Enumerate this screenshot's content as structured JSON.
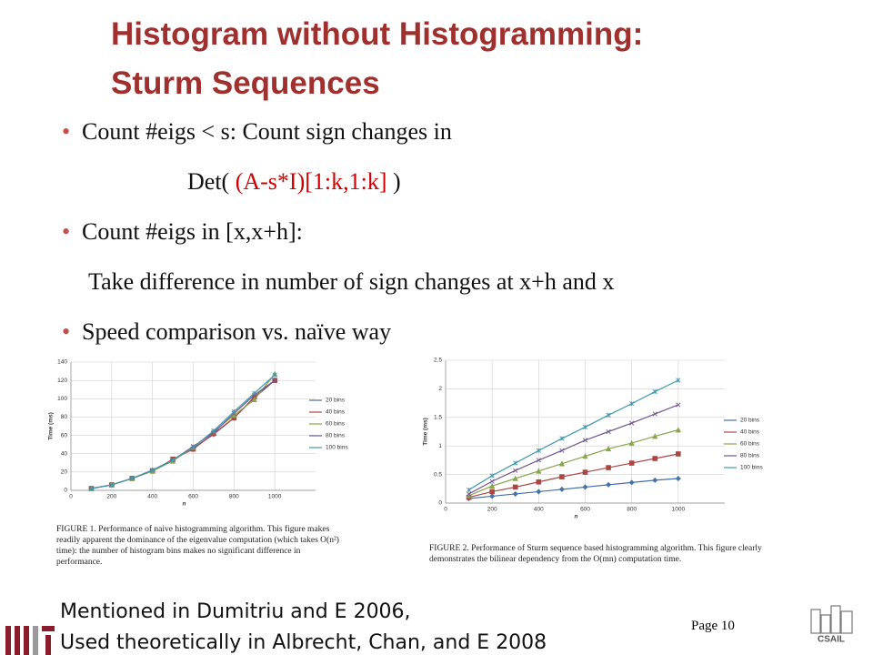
{
  "title": [
    "Histogram without Histogramming:",
    "Sturm Sequences"
  ],
  "bullets": [
    {
      "text": "Count #eigs < s: Count sign changes in"
    },
    {
      "pre": "Det( ",
      "red": "(A-s*I)[1:k,1:k]",
      "post": " )"
    },
    {
      "text": "Count #eigs in [x,x+h]:"
    },
    {
      "text": "Take difference in number of sign changes at x+h and x"
    },
    {
      "text": "Speed comparison vs. naïve way"
    }
  ],
  "footer": [
    "Mentioned in Dumitriu and E 2006,",
    "Used theoretically in Albrecht, Chan, and E 2008"
  ],
  "page": "Page 10",
  "logo_text": "CSAIL",
  "chart_data": [
    {
      "type": "line",
      "ylabel": "Time (ms)",
      "xlabel": "n",
      "x": [
        100,
        200,
        300,
        400,
        500,
        600,
        700,
        800,
        900,
        1000
      ],
      "xlim": [
        0,
        1200
      ],
      "xticks": [
        0,
        200,
        400,
        600,
        800,
        1000
      ],
      "ylim": [
        0,
        140
      ],
      "yticks": [
        0,
        20,
        40,
        60,
        80,
        100,
        120,
        140
      ],
      "grid": true,
      "legend": "right",
      "series": [
        {
          "name": "20 bins",
          "color": "#4572a7",
          "values": [
            2,
            6,
            13,
            22,
            33,
            46,
            61,
            79,
            101,
            120
          ]
        },
        {
          "name": "40 bins",
          "color": "#aa4643",
          "values": [
            2,
            6,
            13,
            21,
            34,
            45,
            62,
            79,
            102,
            120
          ]
        },
        {
          "name": "60 bins",
          "color": "#89a54e",
          "values": [
            2,
            6,
            13,
            21,
            32,
            47,
            64,
            82,
            99,
            127
          ]
        },
        {
          "name": "80 bins",
          "color": "#71588f",
          "values": [
            2,
            6,
            13,
            22,
            33,
            48,
            63,
            84,
            104,
            120
          ]
        },
        {
          "name": "100 bins",
          "color": "#4198af",
          "values": [
            2,
            6,
            13,
            22,
            33,
            47,
            65,
            86,
            106,
            126
          ]
        }
      ],
      "caption": "FIGURE 1. Performance of naive histogramming algorithm. This figure makes readily apparent the dominance of the eigenvalue computation (which takes O(n²) time): the number of histogram bins makes no significant difference in performance."
    },
    {
      "type": "line",
      "ylabel": "Time (ms)",
      "xlabel": "n",
      "x": [
        100,
        200,
        300,
        400,
        500,
        600,
        700,
        800,
        900,
        1000
      ],
      "xlim": [
        0,
        1200
      ],
      "xticks": [
        0,
        200,
        400,
        600,
        800,
        1000
      ],
      "ylim": [
        0,
        2.5
      ],
      "yticks": [
        0,
        0.5,
        1,
        1.5,
        2,
        2.5
      ],
      "grid": true,
      "legend": "right",
      "series": [
        {
          "name": "20 bins",
          "color": "#4572a7",
          "values": [
            0.08,
            0.12,
            0.16,
            0.2,
            0.24,
            0.28,
            0.32,
            0.36,
            0.4,
            0.43
          ]
        },
        {
          "name": "40 bins",
          "color": "#aa4643",
          "values": [
            0.1,
            0.2,
            0.28,
            0.37,
            0.46,
            0.54,
            0.62,
            0.7,
            0.78,
            0.86
          ]
        },
        {
          "name": "60 bins",
          "color": "#89a54e",
          "values": [
            0.13,
            0.3,
            0.43,
            0.56,
            0.69,
            0.82,
            0.95,
            1.05,
            1.17,
            1.28
          ]
        },
        {
          "name": "80 bins",
          "color": "#71588f",
          "values": [
            0.16,
            0.38,
            0.57,
            0.75,
            0.92,
            1.1,
            1.25,
            1.4,
            1.56,
            1.72
          ]
        },
        {
          "name": "100 bins",
          "color": "#4198af",
          "values": [
            0.23,
            0.48,
            0.7,
            0.92,
            1.13,
            1.33,
            1.54,
            1.74,
            1.95,
            2.15
          ]
        }
      ],
      "caption": "FIGURE 2. Performance of Sturm sequence based histogramming algorithm. This figure clearly demonstrates the bilinear dependency from the O(mn) computation time."
    }
  ]
}
